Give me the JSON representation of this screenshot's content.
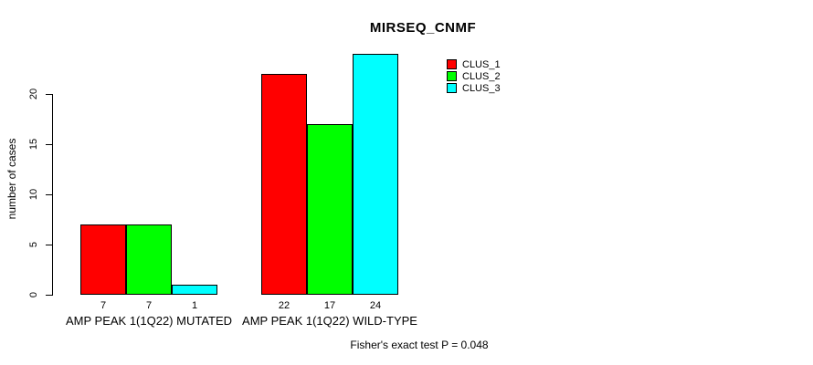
{
  "title": "MIRSEQ_CNMF",
  "ylabel": "number of cases",
  "footer": "Fisher's exact test P = 0.048",
  "legend": {
    "position": "top-right",
    "items": [
      {
        "label": "CLUS_1",
        "color": "#ff0000"
      },
      {
        "label": "CLUS_2",
        "color": "#00ff00"
      },
      {
        "label": "CLUS_3",
        "color": "#00ffff"
      }
    ]
  },
  "chart_data": {
    "type": "bar",
    "grouped": true,
    "title": "MIRSEQ_CNMF",
    "xlabel": "",
    "ylabel": "number of cases",
    "categories": [
      "AMP PEAK 1(1Q22) MUTATED",
      "AMP PEAK 1(1Q22) WILD-TYPE"
    ],
    "series": [
      {
        "name": "CLUS_1",
        "color": "#ff0000",
        "values": [
          7,
          22
        ]
      },
      {
        "name": "CLUS_2",
        "color": "#00ff00",
        "values": [
          7,
          17
        ]
      },
      {
        "name": "CLUS_3",
        "color": "#00ffff",
        "values": [
          1,
          24
        ]
      }
    ],
    "bar_value_labels": [
      [
        7,
        7,
        1
      ],
      [
        22,
        17,
        24
      ]
    ],
    "yticks": [
      0,
      5,
      10,
      15,
      20
    ],
    "ylim": [
      0,
      24
    ],
    "grid": false,
    "bar_border_color": "#000000",
    "legend_position": "top-right",
    "annotation": "Fisher's exact test P = 0.048"
  }
}
